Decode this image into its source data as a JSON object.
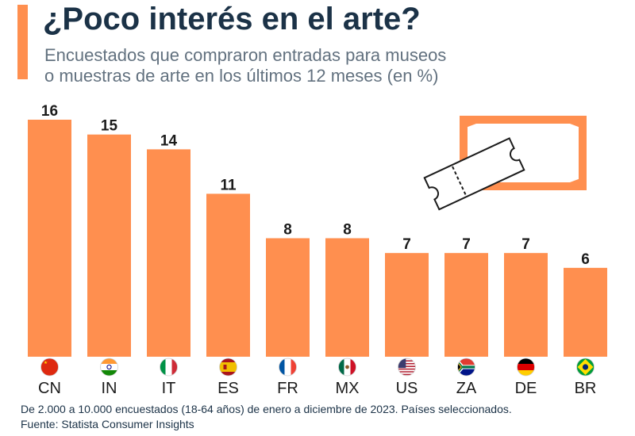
{
  "header": {
    "title": "¿Poco interés en el arte?",
    "subtitle_line1": "Encuestados que compraron entradas para museos",
    "subtitle_line2": "o muestras de arte en los últimos 12 meses (en %)"
  },
  "colors": {
    "bar": "#ff8f4f",
    "accent": "#ff8f4f",
    "title": "#1b3247",
    "subtitle": "#62717f"
  },
  "icon": {
    "name": "ticket-in-frame-icon"
  },
  "chart_data": {
    "type": "bar",
    "categories": [
      "CN",
      "IN",
      "IT",
      "ES",
      "FR",
      "MX",
      "US",
      "ZA",
      "DE",
      "BR"
    ],
    "values": [
      16,
      15,
      14,
      11,
      8,
      8,
      7,
      7,
      7,
      6
    ],
    "flags": [
      "cn-flag-icon",
      "in-flag-icon",
      "it-flag-icon",
      "es-flag-icon",
      "fr-flag-icon",
      "mx-flag-icon",
      "us-flag-icon",
      "za-flag-icon",
      "de-flag-icon",
      "br-flag-icon"
    ],
    "title": "¿Poco interés en el arte?",
    "xlabel": "",
    "ylabel": "",
    "ylim": [
      0,
      16
    ],
    "grid": false,
    "legend": "none",
    "data_labels": true
  },
  "footer": {
    "note": "De 2.000 a 10.000 encuestados (18-64 años) de enero a diciembre de 2023. Países seleccionados.",
    "source": "Fuente: Statista Consumer Insights"
  }
}
